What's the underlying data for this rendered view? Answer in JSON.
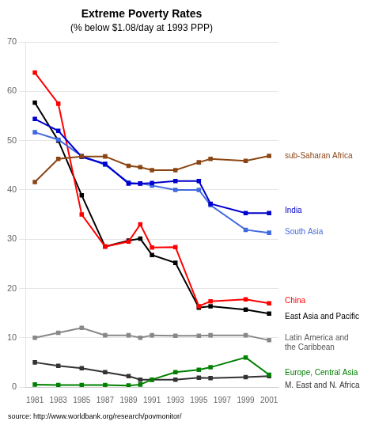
{
  "chart_data": {
    "type": "line",
    "title": "Extreme Poverty Rates",
    "subtitle": "(% below $1.08/day at 1993 PPP)",
    "source": "source: http://www.worldbank.org/research/povmonitor/",
    "x": [
      1981,
      1983,
      1985,
      1987,
      1989,
      1990,
      1991,
      1993,
      1995,
      1996,
      1999,
      2001
    ],
    "series": [
      {
        "name": "sub-Saharan Africa",
        "color": "#8B4513",
        "values": [
          41.6,
          46.3,
          46.8,
          46.8,
          44.9,
          44.6,
          44.0,
          44.0,
          45.6,
          46.3,
          45.9,
          46.9
        ]
      },
      {
        "name": "India",
        "color": "#0000CD",
        "values": [
          54.4,
          52.0,
          46.7,
          45.3,
          41.3,
          41.3,
          41.4,
          41.8,
          41.8,
          37.2,
          35.3,
          35.3
        ]
      },
      {
        "name": "South Asia",
        "color": "#4169E1",
        "values": [
          51.7,
          50.2,
          46.9,
          45.1,
          41.5,
          41.3,
          40.9,
          40.0,
          40.0,
          36.9,
          31.9,
          31.3
        ]
      },
      {
        "name": "China",
        "color": "#FF0000",
        "values": [
          63.8,
          57.5,
          35.0,
          28.5,
          29.5,
          33.0,
          28.3,
          28.4,
          16.4,
          17.4,
          17.8,
          17.0
        ]
      },
      {
        "name": "East Asia and Pacific",
        "color": "#000000",
        "values": [
          57.7,
          50.0,
          38.9,
          28.5,
          29.7,
          30.1,
          26.8,
          25.2,
          16.1,
          16.4,
          15.7,
          14.9
        ]
      },
      {
        "name": "Latin America and the Caribbean",
        "color": "#888888",
        "values": [
          10.0,
          11.0,
          12.0,
          10.5,
          10.5,
          10.0,
          10.5,
          10.4,
          10.4,
          10.5,
          10.5,
          9.5
        ]
      },
      {
        "name": "Europe, Central Asia",
        "color": "#008000",
        "values": [
          0.5,
          0.4,
          0.4,
          0.4,
          0.3,
          0.5,
          1.5,
          3.0,
          3.5,
          4.0,
          6.0,
          2.5
        ]
      },
      {
        "name": "M. East and N. Africa",
        "color": "#333333",
        "values": [
          5.0,
          4.3,
          3.8,
          3.0,
          2.2,
          1.5,
          1.5,
          1.5,
          1.9,
          1.8,
          2.0,
          2.2
        ]
      }
    ],
    "annotations": [
      {
        "text": "sub-Saharan Africa",
        "color": "#8B4513",
        "y": 46.9
      },
      {
        "text": "India",
        "color": "#0000CD",
        "y": 35.8
      },
      {
        "text": "South Asia",
        "color": "#4169E1",
        "y": 31.5
      },
      {
        "text": "China",
        "color": "#FF0000",
        "y": 17.5
      },
      {
        "text": "East Asia and Pacific",
        "color": "#000000",
        "y": 14.3
      },
      {
        "text": "Latin America and\nthe Caribbean",
        "color": "#555555",
        "y": 9.0
      },
      {
        "text": "Europe, Central Asia",
        "color": "#008000",
        "y": 2.8
      },
      {
        "text": "M. East and N. Africa",
        "color": "#333333",
        "y": 0.3
      }
    ],
    "xlim": [
      1980.2,
      2001.8
    ],
    "xticks": [
      1981,
      1983,
      1985,
      1987,
      1989,
      1991,
      1993,
      1995,
      1997,
      1999,
      2001
    ],
    "ylim": [
      0,
      70
    ],
    "yticks": [
      0,
      10,
      20,
      30,
      40,
      50,
      60,
      70
    ],
    "grid": true,
    "marker": "square"
  }
}
